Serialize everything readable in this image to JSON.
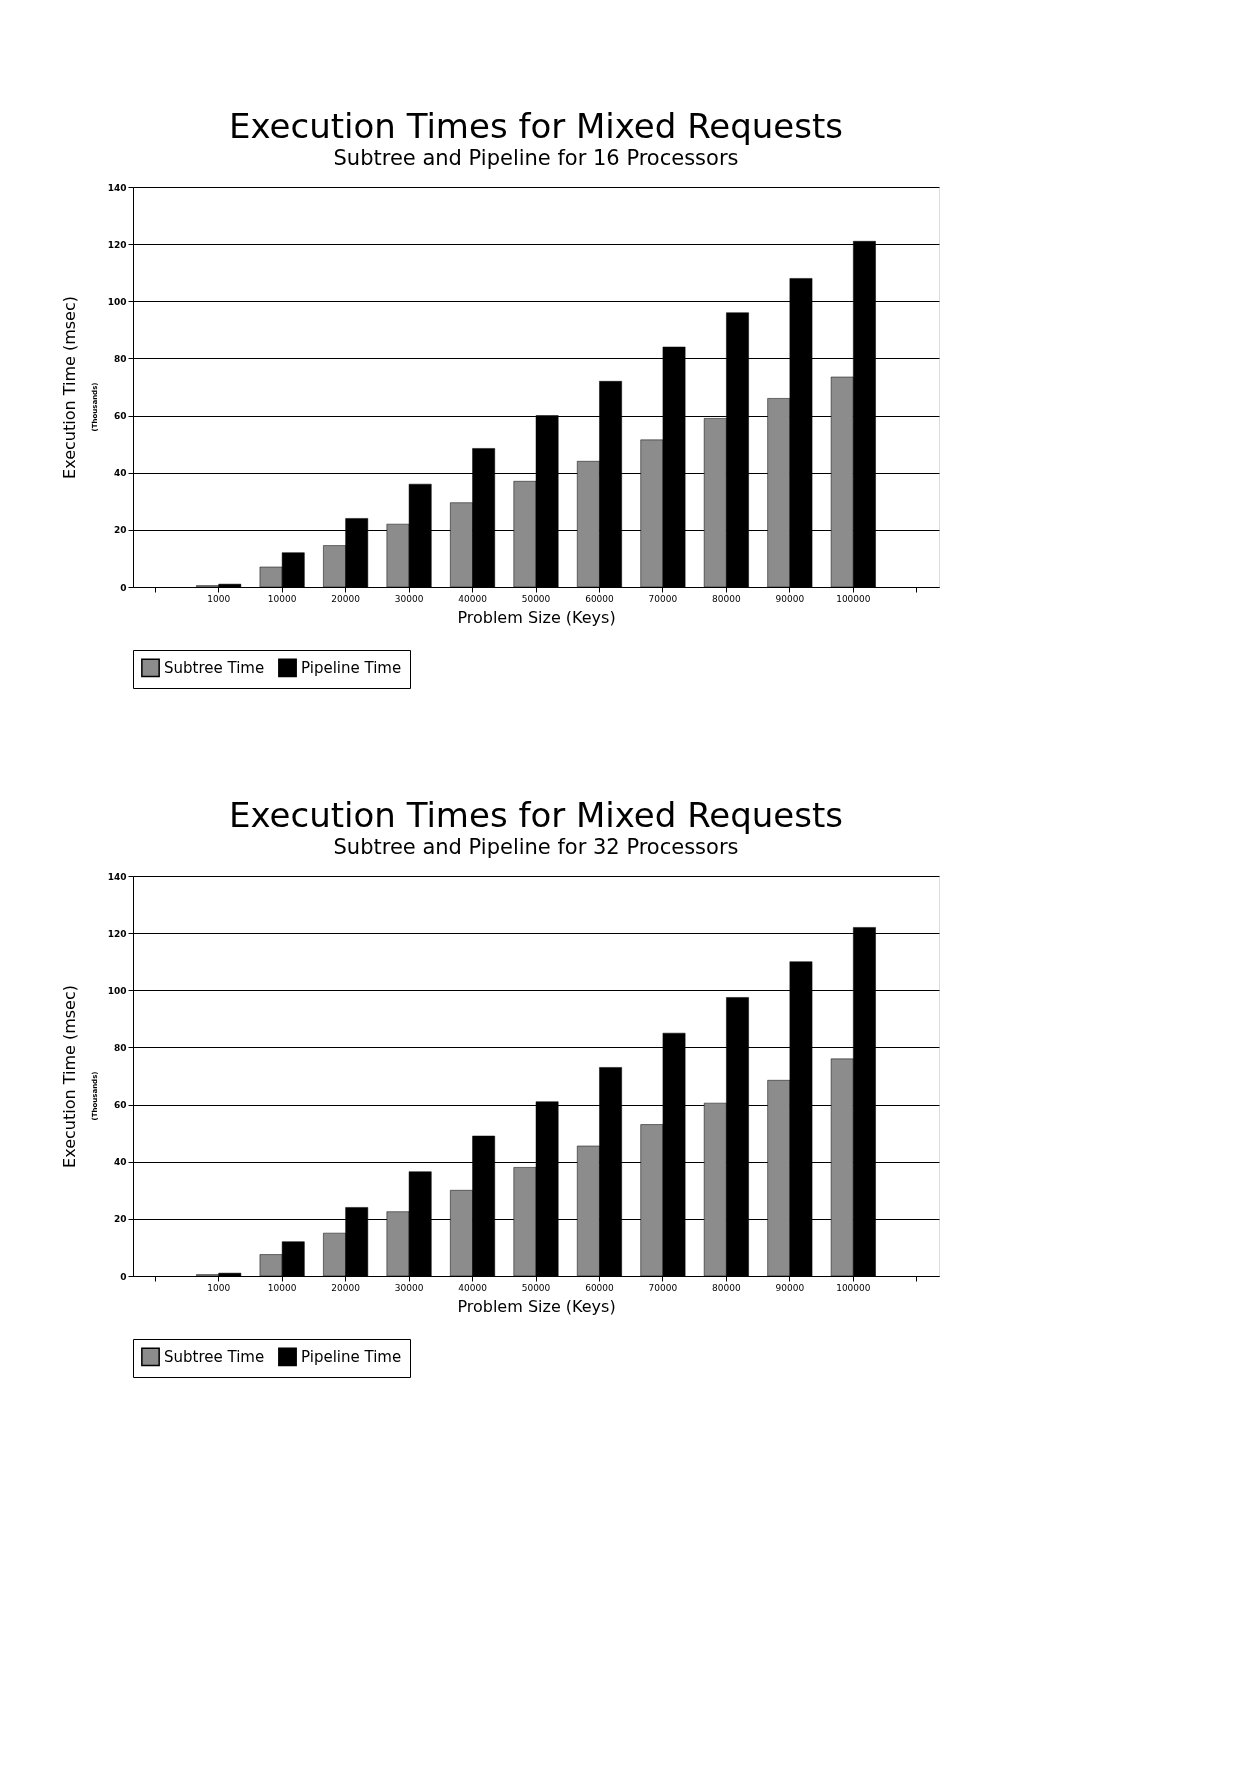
{
  "chart_data": [
    {
      "type": "bar",
      "title": "Execution Times for Mixed Requests",
      "subtitle": "Subtree and Pipeline for 16 Processors",
      "xlabel": "Problem Size (Keys)",
      "ylabel": "Execution Time (msec)",
      "annotations": [
        "(Thousands)"
      ],
      "categories": [
        null,
        "1000",
        "10000",
        "20000",
        "30000",
        "40000",
        "50000",
        "60000",
        "70000",
        "80000",
        "90000",
        "100000",
        null
      ],
      "series": [
        {
          "name": "Subtree Time",
          "color": "#8c8c8c",
          "values": [
            null,
            0.5,
            7,
            14.5,
            22,
            29.5,
            37,
            44,
            51.5,
            59,
            66,
            73.5,
            null
          ]
        },
        {
          "name": "Pipeline Time",
          "color": "#000000",
          "values": [
            null,
            1,
            12,
            24,
            36,
            48.5,
            60,
            72,
            84,
            96,
            108,
            121,
            null
          ]
        }
      ],
      "ylim": [
        0,
        140
      ],
      "yticks": [
        0,
        20,
        40,
        60,
        80,
        100,
        120,
        140
      ],
      "grid": "y",
      "legend": "bottom"
    },
    {
      "type": "bar",
      "title": "Execution Times for Mixed Requests",
      "subtitle": "Subtree and Pipeline for 32 Processors",
      "xlabel": "Problem Size (Keys)",
      "ylabel": "Execution Time (msec)",
      "annotations": [
        "(Thousands)"
      ],
      "categories": [
        null,
        "1000",
        "10000",
        "20000",
        "30000",
        "40000",
        "50000",
        "60000",
        "70000",
        "80000",
        "90000",
        "100000",
        null
      ],
      "series": [
        {
          "name": "Subtree Time",
          "color": "#8c8c8c",
          "values": [
            null,
            0.5,
            7.5,
            15,
            22.5,
            30,
            38,
            45.5,
            53,
            60.5,
            68.5,
            76,
            null
          ]
        },
        {
          "name": "Pipeline Time",
          "color": "#000000",
          "values": [
            null,
            1,
            12,
            24,
            36.5,
            49,
            61,
            73,
            85,
            97.5,
            110,
            122,
            null
          ]
        }
      ],
      "ylim": [
        0,
        140
      ],
      "yticks": [
        0,
        20,
        40,
        60,
        80,
        100,
        120,
        140
      ],
      "grid": "y",
      "legend": "bottom"
    }
  ]
}
